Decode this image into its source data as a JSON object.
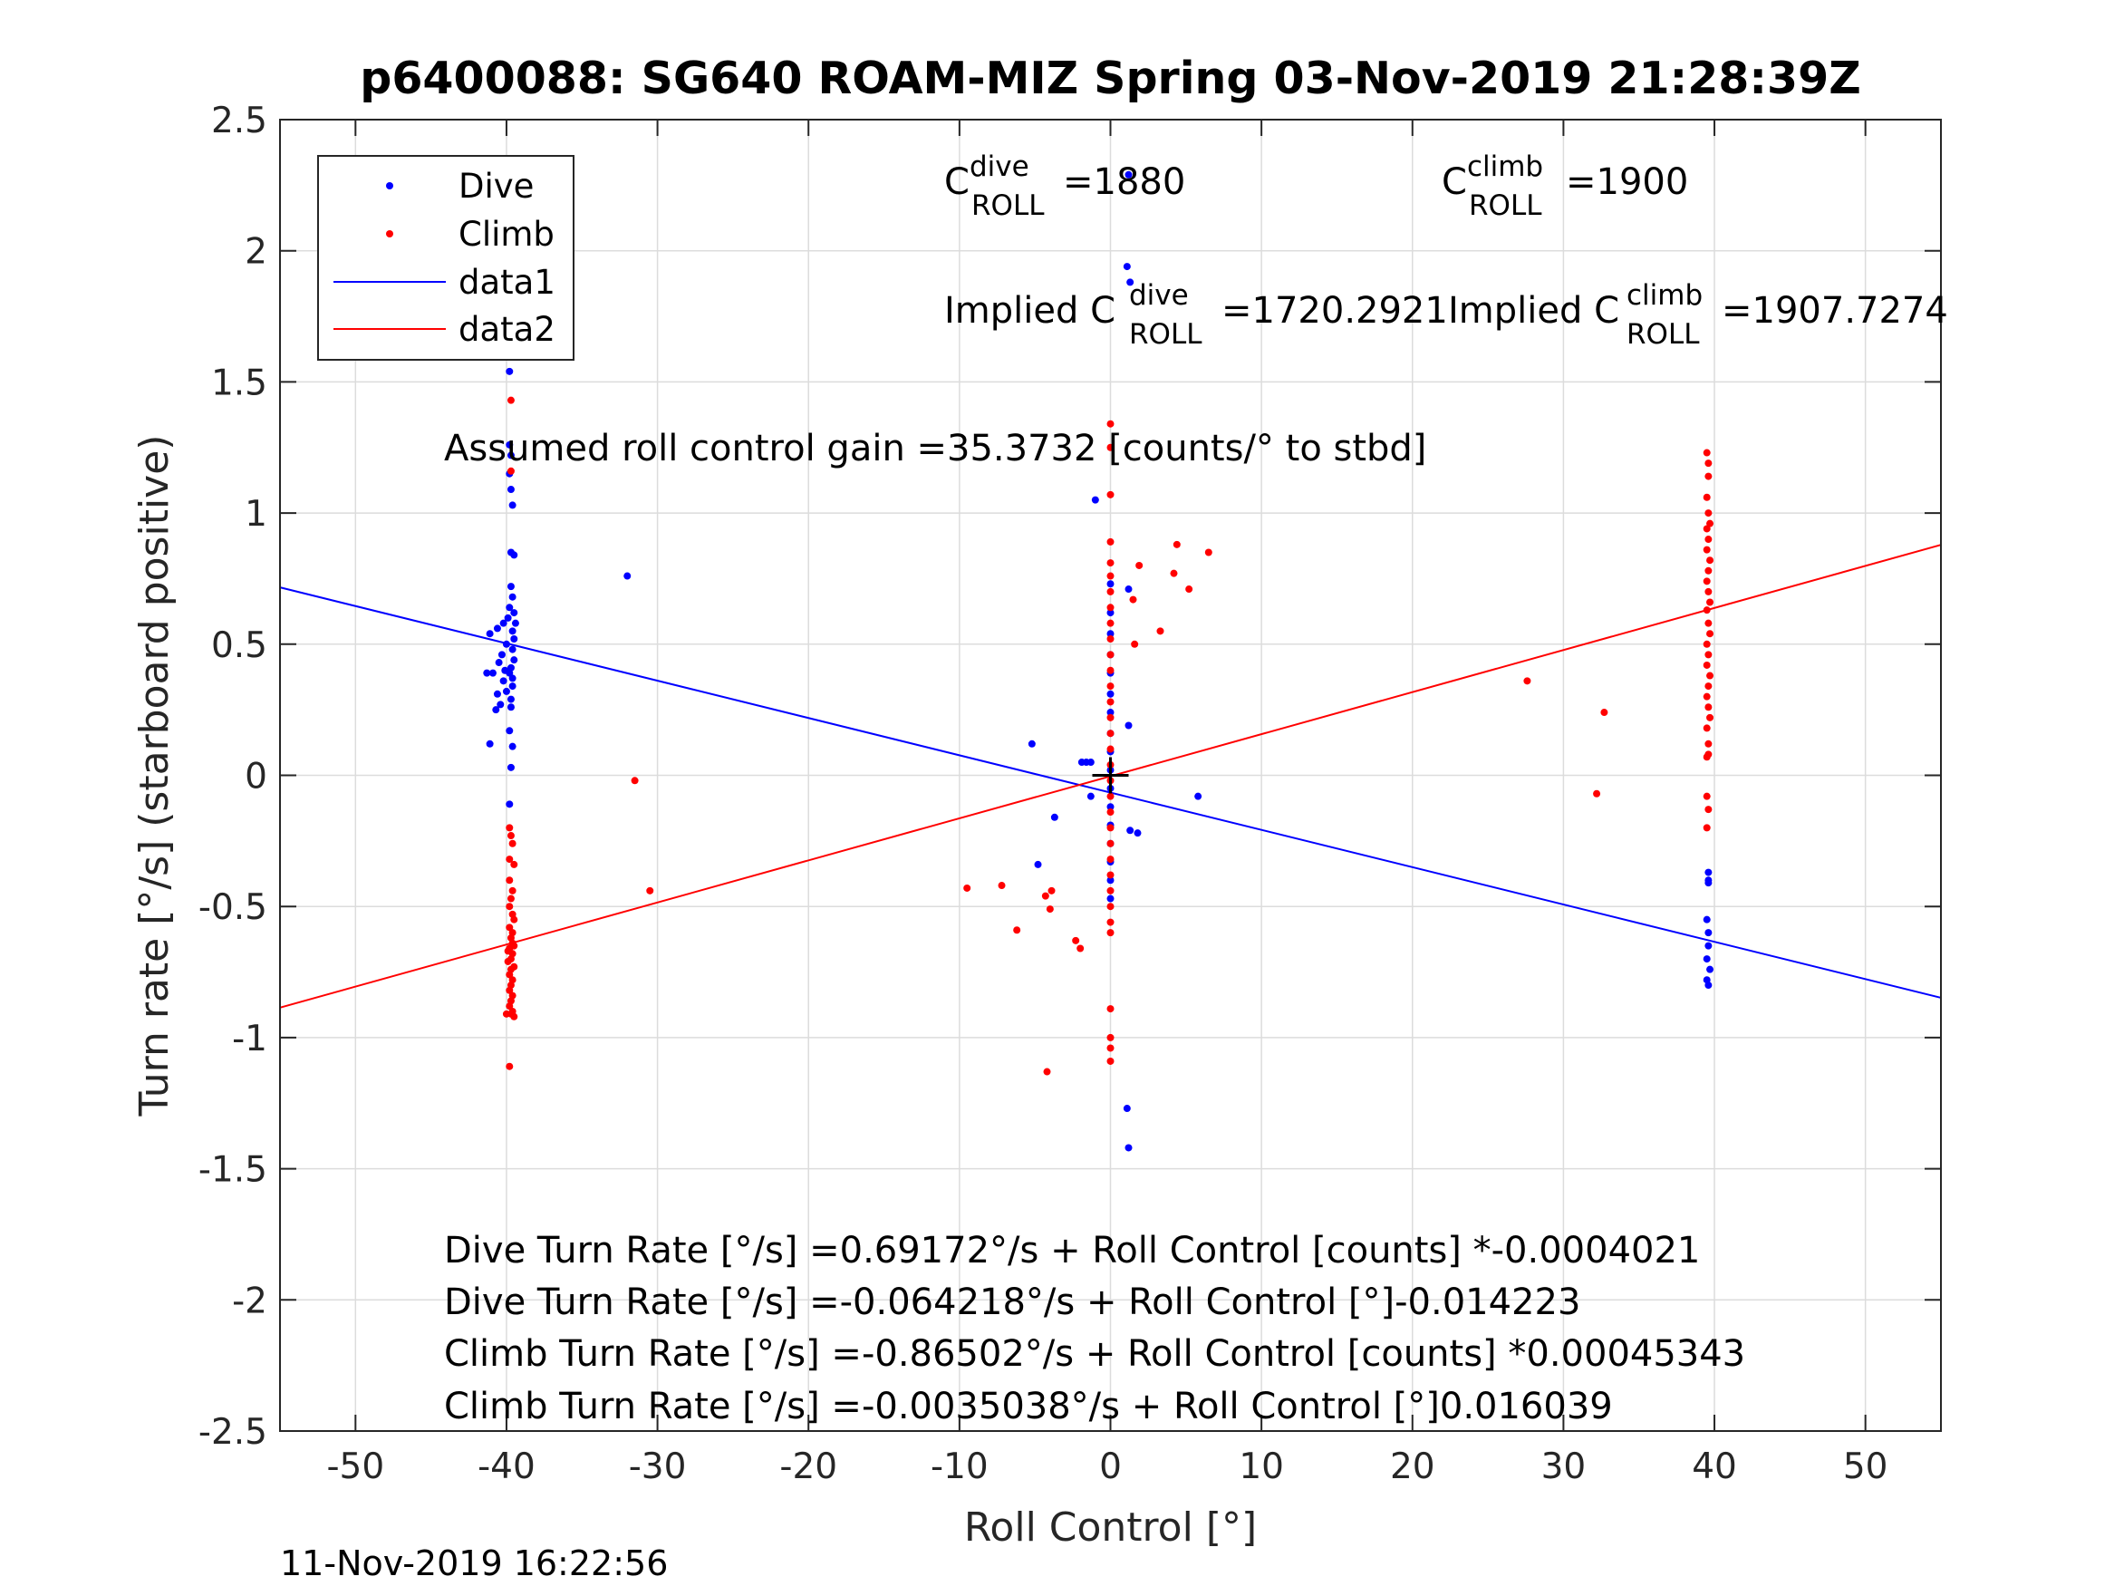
{
  "chart_data": {
    "type": "scatter",
    "title": "p6400088: SG640 ROAM-MIZ Spring 03-Nov-2019 21:28:39Z",
    "xlabel": "Roll Control [°]",
    "ylabel": "Turn rate [°/s] (starboard positive)",
    "xlim": [
      -55,
      55
    ],
    "ylim": [
      -2.5,
      2.5
    ],
    "xticks": [
      -50,
      -40,
      -30,
      -20,
      -10,
      0,
      10,
      20,
      30,
      40,
      50
    ],
    "yticks": [
      -2.5,
      -2,
      -1.5,
      -1,
      -0.5,
      0,
      0.5,
      1,
      1.5,
      2,
      2.5
    ],
    "xtick_labels": [
      "-50",
      "-40",
      "-30",
      "-20",
      "-10",
      "0",
      "10",
      "20",
      "30",
      "40",
      "50"
    ],
    "ytick_labels": [
      "-2.5",
      "-2",
      "-1.5",
      "-1",
      "-0.5",
      "0",
      "0.5",
      "1",
      "1.5",
      "2",
      "2.5"
    ],
    "grid": true,
    "legend_position": "top-left",
    "colors": {
      "dive": "#0000ff",
      "climb": "#ff0000",
      "axes": "#262626",
      "grid": "#dcdcdc",
      "marker": "#000000"
    },
    "legend": [
      {
        "label": "Dive",
        "kind": "dot",
        "color": "#0000ff"
      },
      {
        "label": "Climb",
        "kind": "dot",
        "color": "#ff0000"
      },
      {
        "label": "data1",
        "kind": "line",
        "color": "#0000ff"
      },
      {
        "label": "data2",
        "kind": "line",
        "color": "#ff0000"
      }
    ],
    "series": [
      {
        "name": "Dive",
        "kind": "scatter",
        "color": "#0000ff",
        "points": [
          [
            -39.8,
            1.54
          ],
          [
            -39.8,
            1.26
          ],
          [
            -39.7,
            1.22
          ],
          [
            -39.8,
            1.15
          ],
          [
            -39.7,
            1.09
          ],
          [
            -39.6,
            1.03
          ],
          [
            -39.7,
            0.85
          ],
          [
            -39.5,
            0.84
          ],
          [
            -39.7,
            0.72
          ],
          [
            -39.6,
            0.68
          ],
          [
            -39.8,
            0.64
          ],
          [
            -39.5,
            0.62
          ],
          [
            -39.9,
            0.6
          ],
          [
            -39.4,
            0.58
          ],
          [
            -40.2,
            0.58
          ],
          [
            -40.6,
            0.56
          ],
          [
            -39.6,
            0.55
          ],
          [
            -41.1,
            0.54
          ],
          [
            -39.5,
            0.52
          ],
          [
            -40.0,
            0.5
          ],
          [
            -39.6,
            0.48
          ],
          [
            -40.3,
            0.46
          ],
          [
            -39.5,
            0.44
          ],
          [
            -40.5,
            0.43
          ],
          [
            -39.7,
            0.41
          ],
          [
            -40.1,
            0.4
          ],
          [
            -39.8,
            0.39
          ],
          [
            -40.9,
            0.39
          ],
          [
            -41.3,
            0.39
          ],
          [
            -39.6,
            0.37
          ],
          [
            -40.2,
            0.36
          ],
          [
            -39.6,
            0.34
          ],
          [
            -40.0,
            0.32
          ],
          [
            -40.6,
            0.31
          ],
          [
            -39.7,
            0.29
          ],
          [
            -40.4,
            0.27
          ],
          [
            -39.7,
            0.26
          ],
          [
            -40.7,
            0.25
          ],
          [
            -39.8,
            0.17
          ],
          [
            -41.1,
            0.12
          ],
          [
            -39.6,
            0.11
          ],
          [
            -39.7,
            0.03
          ],
          [
            -39.8,
            -0.11
          ],
          [
            -32.0,
            0.76
          ],
          [
            -1.0,
            1.05
          ],
          [
            1.1,
            1.94
          ],
          [
            1.3,
            1.88
          ],
          [
            1.2,
            2.29
          ],
          [
            1.2,
            0.71
          ],
          [
            1.2,
            0.19
          ],
          [
            -5.2,
            0.12
          ],
          [
            -1.9,
            0.05
          ],
          [
            -1.6,
            0.05
          ],
          [
            -1.3,
            0.05
          ],
          [
            -1.3,
            -0.08
          ],
          [
            -3.7,
            -0.16
          ],
          [
            -4.8,
            -0.34
          ],
          [
            1.3,
            -0.21
          ],
          [
            1.8,
            -0.22
          ],
          [
            5.8,
            -0.08
          ],
          [
            1.1,
            -1.27
          ],
          [
            1.2,
            -1.42
          ],
          [
            0.0,
            0.73
          ],
          [
            0.0,
            0.62
          ],
          [
            0.0,
            0.54
          ],
          [
            0.0,
            0.46
          ],
          [
            0.0,
            0.39
          ],
          [
            0.0,
            0.31
          ],
          [
            0.0,
            0.24
          ],
          [
            0.0,
            0.16
          ],
          [
            0.0,
            0.09
          ],
          [
            0.0,
            0.02
          ],
          [
            0.0,
            -0.05
          ],
          [
            0.0,
            -0.12
          ],
          [
            0.0,
            -0.19
          ],
          [
            0.0,
            -0.26
          ],
          [
            0.0,
            -0.33
          ],
          [
            0.0,
            -0.4
          ],
          [
            0.0,
            -0.47
          ],
          [
            39.6,
            -0.37
          ],
          [
            39.6,
            -0.4
          ],
          [
            39.6,
            -0.41
          ],
          [
            39.5,
            -0.55
          ],
          [
            39.6,
            -0.6
          ],
          [
            39.6,
            -0.65
          ],
          [
            39.5,
            -0.7
          ],
          [
            39.7,
            -0.74
          ],
          [
            39.5,
            -0.78
          ],
          [
            39.6,
            -0.8
          ]
        ]
      },
      {
        "name": "Climb",
        "kind": "scatter",
        "color": "#ff0000",
        "points": [
          [
            -39.7,
            1.43
          ],
          [
            -39.7,
            1.16
          ],
          [
            -39.8,
            -0.2
          ],
          [
            -39.7,
            -0.23
          ],
          [
            -39.6,
            -0.26
          ],
          [
            -39.8,
            -0.32
          ],
          [
            -39.5,
            -0.34
          ],
          [
            -39.8,
            -0.4
          ],
          [
            -39.6,
            -0.44
          ],
          [
            -39.7,
            -0.47
          ],
          [
            -39.8,
            -0.5
          ],
          [
            -39.6,
            -0.53
          ],
          [
            -39.5,
            -0.55
          ],
          [
            -39.8,
            -0.58
          ],
          [
            -39.6,
            -0.6
          ],
          [
            -39.7,
            -0.62
          ],
          [
            -39.6,
            -0.64
          ],
          [
            -39.5,
            -0.65
          ],
          [
            -39.8,
            -0.66
          ],
          [
            -39.9,
            -0.67
          ],
          [
            -39.6,
            -0.68
          ],
          [
            -39.7,
            -0.7
          ],
          [
            -39.9,
            -0.71
          ],
          [
            -39.5,
            -0.73
          ],
          [
            -39.7,
            -0.74
          ],
          [
            -39.8,
            -0.76
          ],
          [
            -39.6,
            -0.78
          ],
          [
            -39.7,
            -0.8
          ],
          [
            -39.8,
            -0.82
          ],
          [
            -39.6,
            -0.84
          ],
          [
            -39.7,
            -0.86
          ],
          [
            -39.8,
            -0.88
          ],
          [
            -39.6,
            -0.9
          ],
          [
            -39.7,
            -0.91
          ],
          [
            -40.0,
            -0.91
          ],
          [
            -39.5,
            -0.92
          ],
          [
            -39.8,
            -1.11
          ],
          [
            -31.5,
            -0.02
          ],
          [
            -30.5,
            -0.44
          ],
          [
            -9.5,
            -0.43
          ],
          [
            -7.2,
            -0.42
          ],
          [
            -6.2,
            -0.59
          ],
          [
            -3.9,
            -0.44
          ],
          [
            -4.3,
            -0.46
          ],
          [
            -4.0,
            -0.51
          ],
          [
            -2.3,
            -0.63
          ],
          [
            -2.0,
            -0.66
          ],
          [
            -4.2,
            -1.13
          ],
          [
            1.5,
            0.67
          ],
          [
            1.9,
            0.8
          ],
          [
            1.6,
            0.5
          ],
          [
            3.3,
            0.55
          ],
          [
            4.2,
            0.77
          ],
          [
            4.4,
            0.88
          ],
          [
            5.2,
            0.71
          ],
          [
            6.5,
            0.85
          ],
          [
            0.0,
            1.34
          ],
          [
            0.0,
            1.25
          ],
          [
            0.0,
            1.07
          ],
          [
            0.0,
            0.89
          ],
          [
            0.0,
            0.81
          ],
          [
            0.0,
            0.76
          ],
          [
            0.0,
            0.7
          ],
          [
            0.0,
            0.64
          ],
          [
            0.0,
            0.58
          ],
          [
            0.0,
            0.52
          ],
          [
            0.0,
            0.46
          ],
          [
            0.0,
            0.4
          ],
          [
            0.0,
            0.34
          ],
          [
            0.0,
            0.28
          ],
          [
            0.0,
            0.22
          ],
          [
            0.0,
            0.16
          ],
          [
            0.0,
            0.1
          ],
          [
            0.0,
            0.04
          ],
          [
            0.0,
            -0.02
          ],
          [
            0.0,
            -0.08
          ],
          [
            0.0,
            -0.14
          ],
          [
            0.0,
            -0.2
          ],
          [
            0.0,
            -0.26
          ],
          [
            0.0,
            -0.32
          ],
          [
            0.0,
            -0.38
          ],
          [
            0.0,
            -0.44
          ],
          [
            0.0,
            -0.5
          ],
          [
            0.0,
            -0.56
          ],
          [
            0.0,
            -0.6
          ],
          [
            0.0,
            -0.89
          ],
          [
            0.0,
            -1.0
          ],
          [
            0.0,
            -1.04
          ],
          [
            0.0,
            -1.09
          ],
          [
            27.6,
            0.36
          ],
          [
            32.7,
            0.24
          ],
          [
            32.2,
            -0.07
          ],
          [
            39.5,
            1.23
          ],
          [
            39.6,
            1.19
          ],
          [
            39.6,
            1.14
          ],
          [
            39.5,
            1.06
          ],
          [
            39.6,
            1.0
          ],
          [
            39.7,
            0.96
          ],
          [
            39.5,
            0.94
          ],
          [
            39.6,
            0.9
          ],
          [
            39.5,
            0.86
          ],
          [
            39.7,
            0.82
          ],
          [
            39.6,
            0.78
          ],
          [
            39.5,
            0.74
          ],
          [
            39.6,
            0.7
          ],
          [
            39.7,
            0.66
          ],
          [
            39.5,
            0.63
          ],
          [
            39.6,
            0.58
          ],
          [
            39.7,
            0.54
          ],
          [
            39.5,
            0.5
          ],
          [
            39.6,
            0.46
          ],
          [
            39.5,
            0.42
          ],
          [
            39.7,
            0.38
          ],
          [
            39.6,
            0.34
          ],
          [
            39.5,
            0.3
          ],
          [
            39.6,
            0.26
          ],
          [
            39.7,
            0.22
          ],
          [
            39.5,
            0.18
          ],
          [
            39.6,
            0.12
          ],
          [
            39.6,
            0.08
          ],
          [
            39.5,
            0.07
          ],
          [
            39.5,
            -0.08
          ],
          [
            39.6,
            -0.13
          ],
          [
            39.5,
            -0.2
          ]
        ]
      },
      {
        "name": "data1",
        "kind": "line",
        "color": "#0000ff",
        "x": [
          -55,
          55
        ],
        "y": [
          0.7165,
          -0.8481
        ]
      },
      {
        "name": "data2",
        "kind": "line",
        "color": "#ff0000",
        "x": [
          -55,
          55
        ],
        "y": [
          -0.8857,
          0.8787
        ]
      }
    ],
    "annotations": {
      "c_dive": {
        "base": "C",
        "sup": "dive",
        "sub": "ROLL",
        "value": "=1880"
      },
      "c_climb": {
        "base": "C",
        "sup": "climb",
        "sub": "ROLL",
        "value": "=1900"
      },
      "implied_dive": {
        "prefix": "Implied C",
        "sup": "dive",
        "sub": "ROLL",
        "value": "=1720.2921"
      },
      "implied_climb": {
        "prefix": "Implied C",
        "sup": "climb",
        "sub": "ROLL",
        "value": "=1907.7274"
      },
      "gain": "Assumed roll control gain =35.3732 [counts/° to stbd]",
      "fits": [
        "Dive Turn Rate [°/s] =0.69172°/s + Roll Control [counts] *-0.0004021",
        "Dive Turn Rate [°/s] =-0.064218°/s + Roll Control [°]-0.014223",
        "Climb Turn Rate [°/s] =-0.86502°/s + Roll Control [counts] *0.00045343",
        "Climb Turn Rate [°/s] =-0.0035038°/s + Roll Control [°]0.016039"
      ]
    },
    "timestamp": "11-Nov-2019 16:22:56"
  }
}
